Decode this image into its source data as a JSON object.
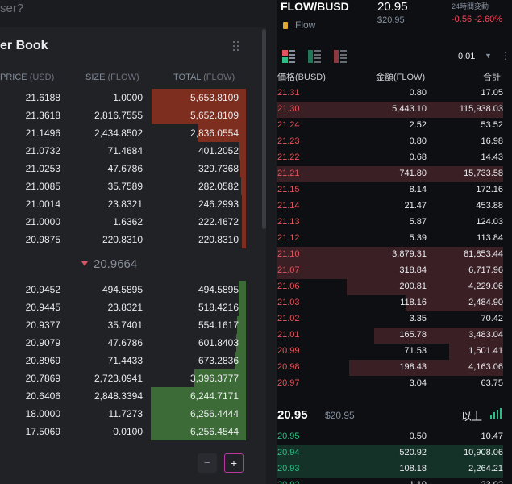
{
  "left": {
    "search_placeholder": "ser?",
    "title": "er Book",
    "headers": {
      "price": "PRICE",
      "price_unit": "(USD)",
      "size": "SIZE",
      "size_unit": "(FLOW)",
      "total": "TOTAL",
      "total_unit": "(FLOW)"
    },
    "asks": [
      {
        "price": "21.6188",
        "size": "1.0000",
        "total": "5,653.8109",
        "depth": 0.99
      },
      {
        "price": "21.3618",
        "size": "2,816.7555",
        "total": "5,652.8109",
        "depth": 0.99
      },
      {
        "price": "21.1496",
        "size": "2,434.8502",
        "total": "2,836.0554",
        "depth": 0.5
      },
      {
        "price": "21.0732",
        "size": "71.4684",
        "total": "401.2052",
        "depth": 0.07
      },
      {
        "price": "21.0253",
        "size": "47.6786",
        "total": "329.7368",
        "depth": 0.06
      },
      {
        "price": "21.0085",
        "size": "35.7589",
        "total": "282.0582",
        "depth": 0.05
      },
      {
        "price": "21.0014",
        "size": "23.8321",
        "total": "246.2993",
        "depth": 0.04
      },
      {
        "price": "21.0000",
        "size": "1.6362",
        "total": "222.4672",
        "depth": 0.04
      },
      {
        "price": "20.9875",
        "size": "220.8310",
        "total": "220.8310",
        "depth": 0.04
      }
    ],
    "mid_price": "20.9664",
    "bids": [
      {
        "price": "20.9452",
        "size": "494.5895",
        "total": "494.5895",
        "depth": 0.08
      },
      {
        "price": "20.9445",
        "size": "23.8321",
        "total": "518.4216",
        "depth": 0.08
      },
      {
        "price": "20.9377",
        "size": "35.7401",
        "total": "554.1617",
        "depth": 0.09
      },
      {
        "price": "20.9079",
        "size": "47.6786",
        "total": "601.8403",
        "depth": 0.1
      },
      {
        "price": "20.8969",
        "size": "71.4433",
        "total": "673.2836",
        "depth": 0.11
      },
      {
        "price": "20.7869",
        "size": "2,723.0941",
        "total": "3,396.3777",
        "depth": 0.54
      },
      {
        "price": "20.6406",
        "size": "2,848.3394",
        "total": "6,244.7171",
        "depth": 1.0
      },
      {
        "price": "18.0000",
        "size": "11.7273",
        "total": "6,256.4444",
        "depth": 1.0
      },
      {
        "price": "17.5069",
        "size": "0.0100",
        "total": "6,256.4544",
        "depth": 1.0
      }
    ],
    "zoom_minus": "−",
    "zoom_plus": "+"
  },
  "right": {
    "pair": "FLOW/BUSD",
    "coin_name": "Flow",
    "price": "20.95",
    "price_usd": "$20.95",
    "change_label": "24時間変動",
    "change": "-0.56 -2.60%",
    "step": "0.01",
    "step_caret": "▼",
    "more": "⋮",
    "headers": {
      "price": "価格(BUSD)",
      "amount": "金額(FLOW)",
      "total": "合計"
    },
    "asks": [
      {
        "price": "21.31",
        "amount": "0.80",
        "total": "17.05",
        "depth": 0.0
      },
      {
        "price": "21.30",
        "amount": "5,443.10",
        "total": "115,938.03",
        "depth": 1.0
      },
      {
        "price": "21.24",
        "amount": "2.52",
        "total": "53.52",
        "depth": 0.0
      },
      {
        "price": "21.23",
        "amount": "0.80",
        "total": "16.98",
        "depth": 0.0
      },
      {
        "price": "21.22",
        "amount": "0.68",
        "total": "14.43",
        "depth": 0.0
      },
      {
        "price": "21.21",
        "amount": "741.80",
        "total": "15,733.58",
        "depth": 1.0
      },
      {
        "price": "21.15",
        "amount": "8.14",
        "total": "172.16",
        "depth": 0.0
      },
      {
        "price": "21.14",
        "amount": "21.47",
        "total": "453.88",
        "depth": 0.0
      },
      {
        "price": "21.13",
        "amount": "5.87",
        "total": "124.03",
        "depth": 0.0
      },
      {
        "price": "21.12",
        "amount": "5.39",
        "total": "113.84",
        "depth": 0.0
      },
      {
        "price": "21.10",
        "amount": "3,879.31",
        "total": "81,853.44",
        "depth": 1.0
      },
      {
        "price": "21.07",
        "amount": "318.84",
        "total": "6,717.96",
        "depth": 1.0
      },
      {
        "price": "21.06",
        "amount": "200.81",
        "total": "4,229.06",
        "depth": 0.69
      },
      {
        "price": "21.03",
        "amount": "118.16",
        "total": "2,484.90",
        "depth": 0.43
      },
      {
        "price": "21.02",
        "amount": "3.35",
        "total": "70.42",
        "depth": 0.0
      },
      {
        "price": "21.01",
        "amount": "165.78",
        "total": "3,483.04",
        "depth": 0.57
      },
      {
        "price": "20.99",
        "amount": "71.53",
        "total": "1,501.41",
        "depth": 0.24
      },
      {
        "price": "20.98",
        "amount": "198.43",
        "total": "4,163.06",
        "depth": 0.68
      },
      {
        "price": "20.97",
        "amount": "3.04",
        "total": "63.75",
        "depth": 0.0
      }
    ],
    "last_price": "20.95",
    "last_usd": "$20.95",
    "more_label": "以上",
    "bids": [
      {
        "price": "20.95",
        "amount": "0.50",
        "total": "10.47",
        "depth": 0.0
      },
      {
        "price": "20.94",
        "amount": "520.92",
        "total": "10,908.06",
        "depth": 1.0
      },
      {
        "price": "20.93",
        "amount": "108.18",
        "total": "2,264.21",
        "depth": 1.0
      },
      {
        "price": "20.92",
        "amount": "1.10",
        "total": "23.02",
        "depth": 0.0
      }
    ],
    "colors": {
      "ask": "#f6465d",
      "bid": "#2ebd85"
    }
  }
}
